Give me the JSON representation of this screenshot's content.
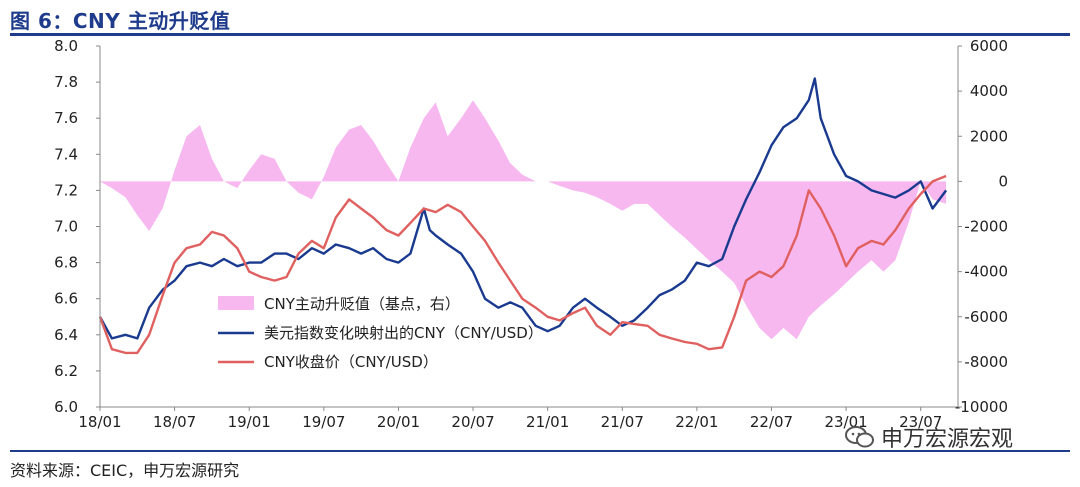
{
  "figure": {
    "title": "图 6：CNY 主动升贬值",
    "source": "资料来源：CEIC，申万宏源研究",
    "watermark": "申万宏源宏观"
  },
  "colors": {
    "title": "#1f3b8c",
    "bars": "#f7b8f0",
    "index_line": "#1a3a8f",
    "cny_line": "#e06060"
  },
  "chart_data": {
    "type": "line",
    "title": "图 6：CNY 主动升贬值",
    "x_ticks": [
      "18/01",
      "18/07",
      "19/01",
      "19/07",
      "20/01",
      "20/07",
      "21/01",
      "21/07",
      "22/01",
      "22/07",
      "23/01",
      "23/07"
    ],
    "y_left": {
      "min": 6.0,
      "max": 8.0,
      "ticks": [
        "6.0",
        "6.2",
        "6.4",
        "6.6",
        "6.8",
        "7.0",
        "7.2",
        "7.4",
        "7.6",
        "7.8",
        "8.0"
      ]
    },
    "y_right": {
      "min": -10000,
      "max": 6000,
      "ticks": [
        "-10000",
        "-8000",
        "-6000",
        "-4000",
        "-2000",
        "0",
        "2000",
        "4000",
        "6000"
      ]
    },
    "x_range": [
      "2018-01",
      "2023-09"
    ],
    "grid": false,
    "legend_position": "center-left",
    "series": [
      {
        "name": "CNY主动升贬值（基点，右）",
        "kind": "area",
        "axis": "right",
        "x": [
          2018.0,
          2018.08,
          2018.17,
          2018.25,
          2018.33,
          2018.42,
          2018.5,
          2018.58,
          2018.67,
          2018.75,
          2018.83,
          2018.92,
          2019.0,
          2019.08,
          2019.17,
          2019.25,
          2019.33,
          2019.42,
          2019.5,
          2019.58,
          2019.67,
          2019.75,
          2019.83,
          2019.92,
          2020.0,
          2020.08,
          2020.17,
          2020.25,
          2020.33,
          2020.42,
          2020.5,
          2020.58,
          2020.67,
          2020.75,
          2020.83,
          2020.92,
          2021.0,
          2021.08,
          2021.17,
          2021.25,
          2021.33,
          2021.42,
          2021.5,
          2021.58,
          2021.67,
          2021.75,
          2021.83,
          2021.92,
          2022.0,
          2022.08,
          2022.17,
          2022.25,
          2022.33,
          2022.42,
          2022.5,
          2022.58,
          2022.67,
          2022.75,
          2022.83,
          2022.92,
          2023.0,
          2023.08,
          2023.17,
          2023.25,
          2023.33,
          2023.42,
          2023.5,
          2023.58,
          2023.67
        ],
        "values": [
          0,
          -300,
          -700,
          -1500,
          -2200,
          -1200,
          500,
          2000,
          2500,
          1000,
          0,
          -300,
          500,
          1200,
          1000,
          0,
          -500,
          -800,
          200,
          1500,
          2300,
          2500,
          1800,
          800,
          0,
          1500,
          2800,
          3500,
          2000,
          2800,
          3600,
          2800,
          1800,
          800,
          300,
          0,
          0,
          -200,
          -400,
          -500,
          -700,
          -1000,
          -1300,
          -1000,
          -1000,
          -1500,
          -2000,
          -2500,
          -3000,
          -3500,
          -4000,
          -4500,
          -5500,
          -6500,
          -7000,
          -6500,
          -7000,
          -6000,
          -5500,
          -5000,
          -4500,
          -4000,
          -3500,
          -4000,
          -3500,
          -1800,
          0,
          -800,
          -1000
        ]
      },
      {
        "name": "美元指数变化映射出的CNY（CNY/USD）",
        "kind": "line",
        "axis": "left",
        "x": [
          2018.0,
          2018.08,
          2018.17,
          2018.25,
          2018.33,
          2018.42,
          2018.5,
          2018.58,
          2018.67,
          2018.75,
          2018.83,
          2018.92,
          2019.0,
          2019.08,
          2019.17,
          2019.25,
          2019.33,
          2019.42,
          2019.5,
          2019.58,
          2019.67,
          2019.75,
          2019.83,
          2019.92,
          2020.0,
          2020.08,
          2020.17,
          2020.21,
          2020.25,
          2020.33,
          2020.42,
          2020.5,
          2020.58,
          2020.67,
          2020.75,
          2020.83,
          2020.92,
          2021.0,
          2021.08,
          2021.17,
          2021.25,
          2021.33,
          2021.42,
          2021.5,
          2021.58,
          2021.67,
          2021.75,
          2021.83,
          2021.92,
          2022.0,
          2022.08,
          2022.17,
          2022.25,
          2022.33,
          2022.42,
          2022.5,
          2022.58,
          2022.67,
          2022.75,
          2022.79,
          2022.83,
          2022.92,
          2023.0,
          2023.08,
          2023.17,
          2023.25,
          2023.33,
          2023.42,
          2023.5,
          2023.58,
          2023.67
        ],
        "values": [
          6.5,
          6.38,
          6.4,
          6.38,
          6.55,
          6.65,
          6.7,
          6.78,
          6.8,
          6.78,
          6.82,
          6.78,
          6.8,
          6.8,
          6.85,
          6.85,
          6.82,
          6.88,
          6.85,
          6.9,
          6.88,
          6.85,
          6.88,
          6.82,
          6.8,
          6.85,
          7.1,
          6.98,
          6.95,
          6.9,
          6.85,
          6.75,
          6.6,
          6.55,
          6.58,
          6.55,
          6.45,
          6.42,
          6.45,
          6.55,
          6.6,
          6.55,
          6.5,
          6.45,
          6.48,
          6.55,
          6.62,
          6.65,
          6.7,
          6.8,
          6.78,
          6.82,
          7.0,
          7.15,
          7.3,
          7.45,
          7.55,
          7.6,
          7.7,
          7.82,
          7.6,
          7.4,
          7.28,
          7.25,
          7.2,
          7.18,
          7.16,
          7.2,
          7.25,
          7.1,
          7.2
        ]
      },
      {
        "name": "CNY收盘价（CNY/USD）",
        "kind": "line",
        "axis": "left",
        "x": [
          2018.0,
          2018.08,
          2018.17,
          2018.25,
          2018.33,
          2018.42,
          2018.5,
          2018.58,
          2018.67,
          2018.75,
          2018.83,
          2018.92,
          2019.0,
          2019.08,
          2019.17,
          2019.25,
          2019.33,
          2019.42,
          2019.5,
          2019.58,
          2019.67,
          2019.75,
          2019.83,
          2019.92,
          2020.0,
          2020.08,
          2020.17,
          2020.25,
          2020.33,
          2020.42,
          2020.5,
          2020.58,
          2020.67,
          2020.75,
          2020.83,
          2020.92,
          2021.0,
          2021.08,
          2021.17,
          2021.25,
          2021.33,
          2021.42,
          2021.5,
          2021.58,
          2021.67,
          2021.75,
          2021.83,
          2021.92,
          2022.0,
          2022.08,
          2022.17,
          2022.25,
          2022.33,
          2022.42,
          2022.5,
          2022.58,
          2022.67,
          2022.75,
          2022.83,
          2022.92,
          2023.0,
          2023.08,
          2023.17,
          2023.25,
          2023.33,
          2023.42,
          2023.5,
          2023.58,
          2023.67
        ],
        "values": [
          6.5,
          6.32,
          6.3,
          6.3,
          6.4,
          6.62,
          6.8,
          6.88,
          6.9,
          6.97,
          6.95,
          6.88,
          6.75,
          6.72,
          6.7,
          6.72,
          6.85,
          6.92,
          6.88,
          7.05,
          7.15,
          7.1,
          7.05,
          6.98,
          6.95,
          7.02,
          7.1,
          7.08,
          7.12,
          7.08,
          7.0,
          6.92,
          6.8,
          6.7,
          6.6,
          6.55,
          6.5,
          6.48,
          6.52,
          6.55,
          6.45,
          6.4,
          6.47,
          6.46,
          6.45,
          6.4,
          6.38,
          6.36,
          6.35,
          6.32,
          6.33,
          6.5,
          6.7,
          6.75,
          6.72,
          6.78,
          6.95,
          7.2,
          7.1,
          6.95,
          6.78,
          6.88,
          6.92,
          6.9,
          6.98,
          7.1,
          7.18,
          7.25,
          7.28
        ]
      }
    ]
  }
}
